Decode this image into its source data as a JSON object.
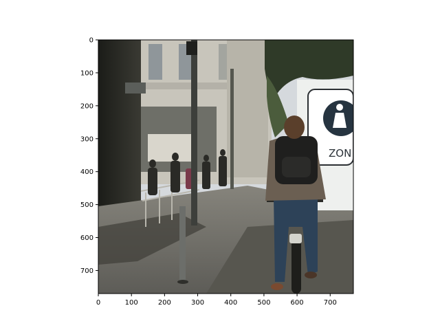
{
  "figure": {
    "image_description_id": "street-scene-cyclist",
    "x_ticks": [
      "0",
      "100",
      "200",
      "300",
      "400",
      "500",
      "600",
      "700"
    ],
    "y_ticks": [
      "0",
      "100",
      "200",
      "300",
      "400",
      "500",
      "600",
      "700"
    ],
    "x_range": [
      0,
      770
    ],
    "y_range": [
      0,
      770
    ],
    "sign_text": "ZON",
    "sky_color": "#d8dde2",
    "building_color": "#c9c6bd",
    "shadow_color": "#2b2b26",
    "pavement_color": "#6f6d66"
  }
}
